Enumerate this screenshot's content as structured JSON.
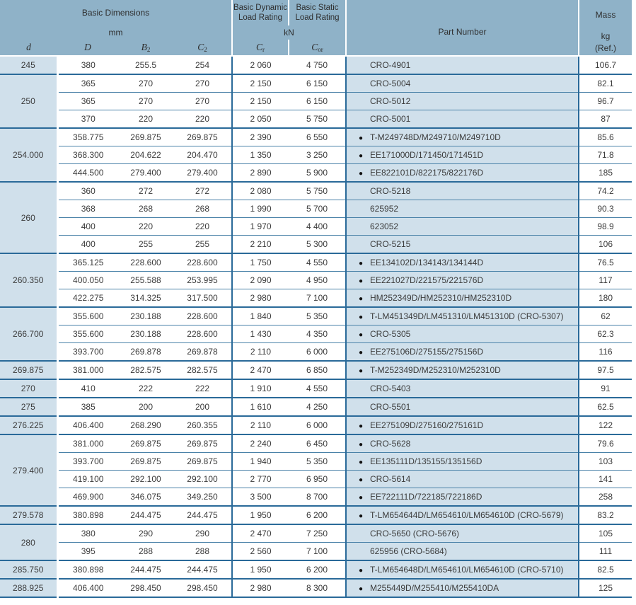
{
  "colors": {
    "header_bg": "#8fb2c8",
    "cell_blue": "#d0e0eb",
    "row_line": "#4a82a8",
    "group_line": "#2a6a99",
    "text": "#3b3b3b"
  },
  "table": {
    "header": {
      "basic_dimensions": "Basic Dimensions",
      "mm": "mm",
      "dynamic_line1": "Basic Dynamic",
      "dynamic_line2": "Load Rating",
      "static_line1": "Basic Static",
      "static_line2": "Load Rating",
      "kn": "kN",
      "part_number": "Part Number",
      "mass": "Mass",
      "kg": "kg",
      "ref": "(Ref.)",
      "col_d": "d",
      "col_D": "D",
      "col_B": "B",
      "col_B_sub": "2",
      "col_C": "C",
      "col_C_sub": "2",
      "col_Cr": "C",
      "col_Cr_sub": "r",
      "col_Cor": "C",
      "col_Cor_sub": "or"
    },
    "groups": [
      {
        "d": "245",
        "rows": [
          {
            "D": "380",
            "B2": "255.5",
            "C2": "254",
            "Cr": "2 060",
            "Cor": "4 750",
            "bullet": false,
            "part": "CRO-4901",
            "mass": "106.7"
          }
        ]
      },
      {
        "d": "250",
        "rows": [
          {
            "D": "365",
            "B2": "270",
            "C2": "270",
            "Cr": "2 150",
            "Cor": "6 150",
            "bullet": false,
            "part": "CRO-5004",
            "mass": "82.1"
          },
          {
            "D": "365",
            "B2": "270",
            "C2": "270",
            "Cr": "2 150",
            "Cor": "6 150",
            "bullet": false,
            "part": "CRO-5012",
            "mass": "96.7"
          },
          {
            "D": "370",
            "B2": "220",
            "C2": "220",
            "Cr": "2 050",
            "Cor": "5 750",
            "bullet": false,
            "part": "CRO-5001",
            "mass": "87"
          }
        ]
      },
      {
        "d": "254.000",
        "rows": [
          {
            "D": "358.775",
            "B2": "269.875",
            "C2": "269.875",
            "Cr": "2 390",
            "Cor": "6 550",
            "bullet": true,
            "part": "T-M249748D/M249710/M249710D",
            "mass": "85.6"
          },
          {
            "D": "368.300",
            "B2": "204.622",
            "C2": "204.470",
            "Cr": "1 350",
            "Cor": "3 250",
            "bullet": true,
            "part": "EE171000D/171450/171451D",
            "mass": "71.8"
          },
          {
            "D": "444.500",
            "B2": "279.400",
            "C2": "279.400",
            "Cr": "2 890",
            "Cor": "5 900",
            "bullet": true,
            "part": "EE822101D/822175/822176D",
            "mass": "185"
          }
        ]
      },
      {
        "d": "260",
        "rows": [
          {
            "D": "360",
            "B2": "272",
            "C2": "272",
            "Cr": "2 080",
            "Cor": "5 750",
            "bullet": false,
            "part": "CRO-5218",
            "mass": "74.2"
          },
          {
            "D": "368",
            "B2": "268",
            "C2": "268",
            "Cr": "1 990",
            "Cor": "5 700",
            "bullet": false,
            "part": "625952",
            "mass": "90.3"
          },
          {
            "D": "400",
            "B2": "220",
            "C2": "220",
            "Cr": "1 970",
            "Cor": "4 400",
            "bullet": false,
            "part": "623052",
            "mass": "98.9"
          },
          {
            "D": "400",
            "B2": "255",
            "C2": "255",
            "Cr": "2 210",
            "Cor": "5 300",
            "bullet": false,
            "part": "CRO-5215",
            "mass": "106"
          }
        ]
      },
      {
        "d": "260.350",
        "rows": [
          {
            "D": "365.125",
            "B2": "228.600",
            "C2": "228.600",
            "Cr": "1 750",
            "Cor": "4 550",
            "bullet": true,
            "part": "EE134102D/134143/134144D",
            "mass": "76.5"
          },
          {
            "D": "400.050",
            "B2": "255.588",
            "C2": "253.995",
            "Cr": "2 090",
            "Cor": "4 950",
            "bullet": true,
            "part": "EE221027D/221575/221576D",
            "mass": "117"
          },
          {
            "D": "422.275",
            "B2": "314.325",
            "C2": "317.500",
            "Cr": "2 980",
            "Cor": "7 100",
            "bullet": true,
            "part": "HM252349D/HM252310/HM252310D",
            "mass": "180"
          }
        ]
      },
      {
        "d": "266.700",
        "rows": [
          {
            "D": "355.600",
            "B2": "230.188",
            "C2": "228.600",
            "Cr": "1 840",
            "Cor": "5 350",
            "bullet": true,
            "part": "T-LM451349D/LM451310/LM451310D (CRO-5307)",
            "mass": "62"
          },
          {
            "D": "355.600",
            "B2": "230.188",
            "C2": "228.600",
            "Cr": "1 430",
            "Cor": "4 350",
            "bullet": true,
            "part": "CRO-5305",
            "mass": "62.3"
          },
          {
            "D": "393.700",
            "B2": "269.878",
            "C2": "269.878",
            "Cr": "2 110",
            "Cor": "6 000",
            "bullet": true,
            "part": "EE275106D/275155/275156D",
            "mass": "116"
          }
        ]
      },
      {
        "d": "269.875",
        "rows": [
          {
            "D": "381.000",
            "B2": "282.575",
            "C2": "282.575",
            "Cr": "2 470",
            "Cor": "6 850",
            "bullet": true,
            "part": "T-M252349D/M252310/M252310D",
            "mass": "97.5"
          }
        ]
      },
      {
        "d": "270",
        "rows": [
          {
            "D": "410",
            "B2": "222",
            "C2": "222",
            "Cr": "1 910",
            "Cor": "4 550",
            "bullet": false,
            "part": "CRO-5403",
            "mass": "91"
          }
        ]
      },
      {
        "d": "275",
        "rows": [
          {
            "D": "385",
            "B2": "200",
            "C2": "200",
            "Cr": "1 610",
            "Cor": "4 250",
            "bullet": false,
            "part": "CRO-5501",
            "mass": "62.5"
          }
        ]
      },
      {
        "d": "276.225",
        "rows": [
          {
            "D": "406.400",
            "B2": "268.290",
            "C2": "260.355",
            "Cr": "2 110",
            "Cor": "6 000",
            "bullet": true,
            "part": "EE275109D/275160/275161D",
            "mass": "122"
          }
        ]
      },
      {
        "d": "279.400",
        "rows": [
          {
            "D": "381.000",
            "B2": "269.875",
            "C2": "269.875",
            "Cr": "2 240",
            "Cor": "6 450",
            "bullet": true,
            "part": "CRO-5628",
            "mass": "79.6"
          },
          {
            "D": "393.700",
            "B2": "269.875",
            "C2": "269.875",
            "Cr": "1 940",
            "Cor": "5 350",
            "bullet": true,
            "part": "EE135111D/135155/135156D",
            "mass": "103"
          },
          {
            "D": "419.100",
            "B2": "292.100",
            "C2": "292.100",
            "Cr": "2 770",
            "Cor": "6 950",
            "bullet": true,
            "part": "CRO-5614",
            "mass": "141"
          },
          {
            "D": "469.900",
            "B2": "346.075",
            "C2": "349.250",
            "Cr": "3 500",
            "Cor": "8 700",
            "bullet": true,
            "part": "EE722111D/722185/722186D",
            "mass": "258"
          }
        ]
      },
      {
        "d": "279.578",
        "rows": [
          {
            "D": "380.898",
            "B2": "244.475",
            "C2": "244.475",
            "Cr": "1 950",
            "Cor": "6 200",
            "bullet": true,
            "part": "T-LM654644D/LM654610/LM654610D (CRO-5679)",
            "mass": "83.2"
          }
        ]
      },
      {
        "d": "280",
        "rows": [
          {
            "D": "380",
            "B2": "290",
            "C2": "290",
            "Cr": "2 470",
            "Cor": "7 250",
            "bullet": false,
            "part": "CRO-5650 (CRO-5676)",
            "mass": "105"
          },
          {
            "D": "395",
            "B2": "288",
            "C2": "288",
            "Cr": "2 560",
            "Cor": "7 100",
            "bullet": false,
            "part": "625956 (CRO-5684)",
            "mass": "111"
          }
        ]
      },
      {
        "d": "285.750",
        "rows": [
          {
            "D": "380.898",
            "B2": "244.475",
            "C2": "244.475",
            "Cr": "1 950",
            "Cor": "6 200",
            "bullet": true,
            "part": "T-LM654648D/LM654610/LM654610D (CRO-5710)",
            "mass": "82.5"
          }
        ]
      },
      {
        "d": "288.925",
        "rows": [
          {
            "D": "406.400",
            "B2": "298.450",
            "C2": "298.450",
            "Cr": "2 980",
            "Cor": "8 300",
            "bullet": true,
            "part": "M255449D/M255410/M255410DA",
            "mass": "125"
          }
        ]
      }
    ]
  }
}
